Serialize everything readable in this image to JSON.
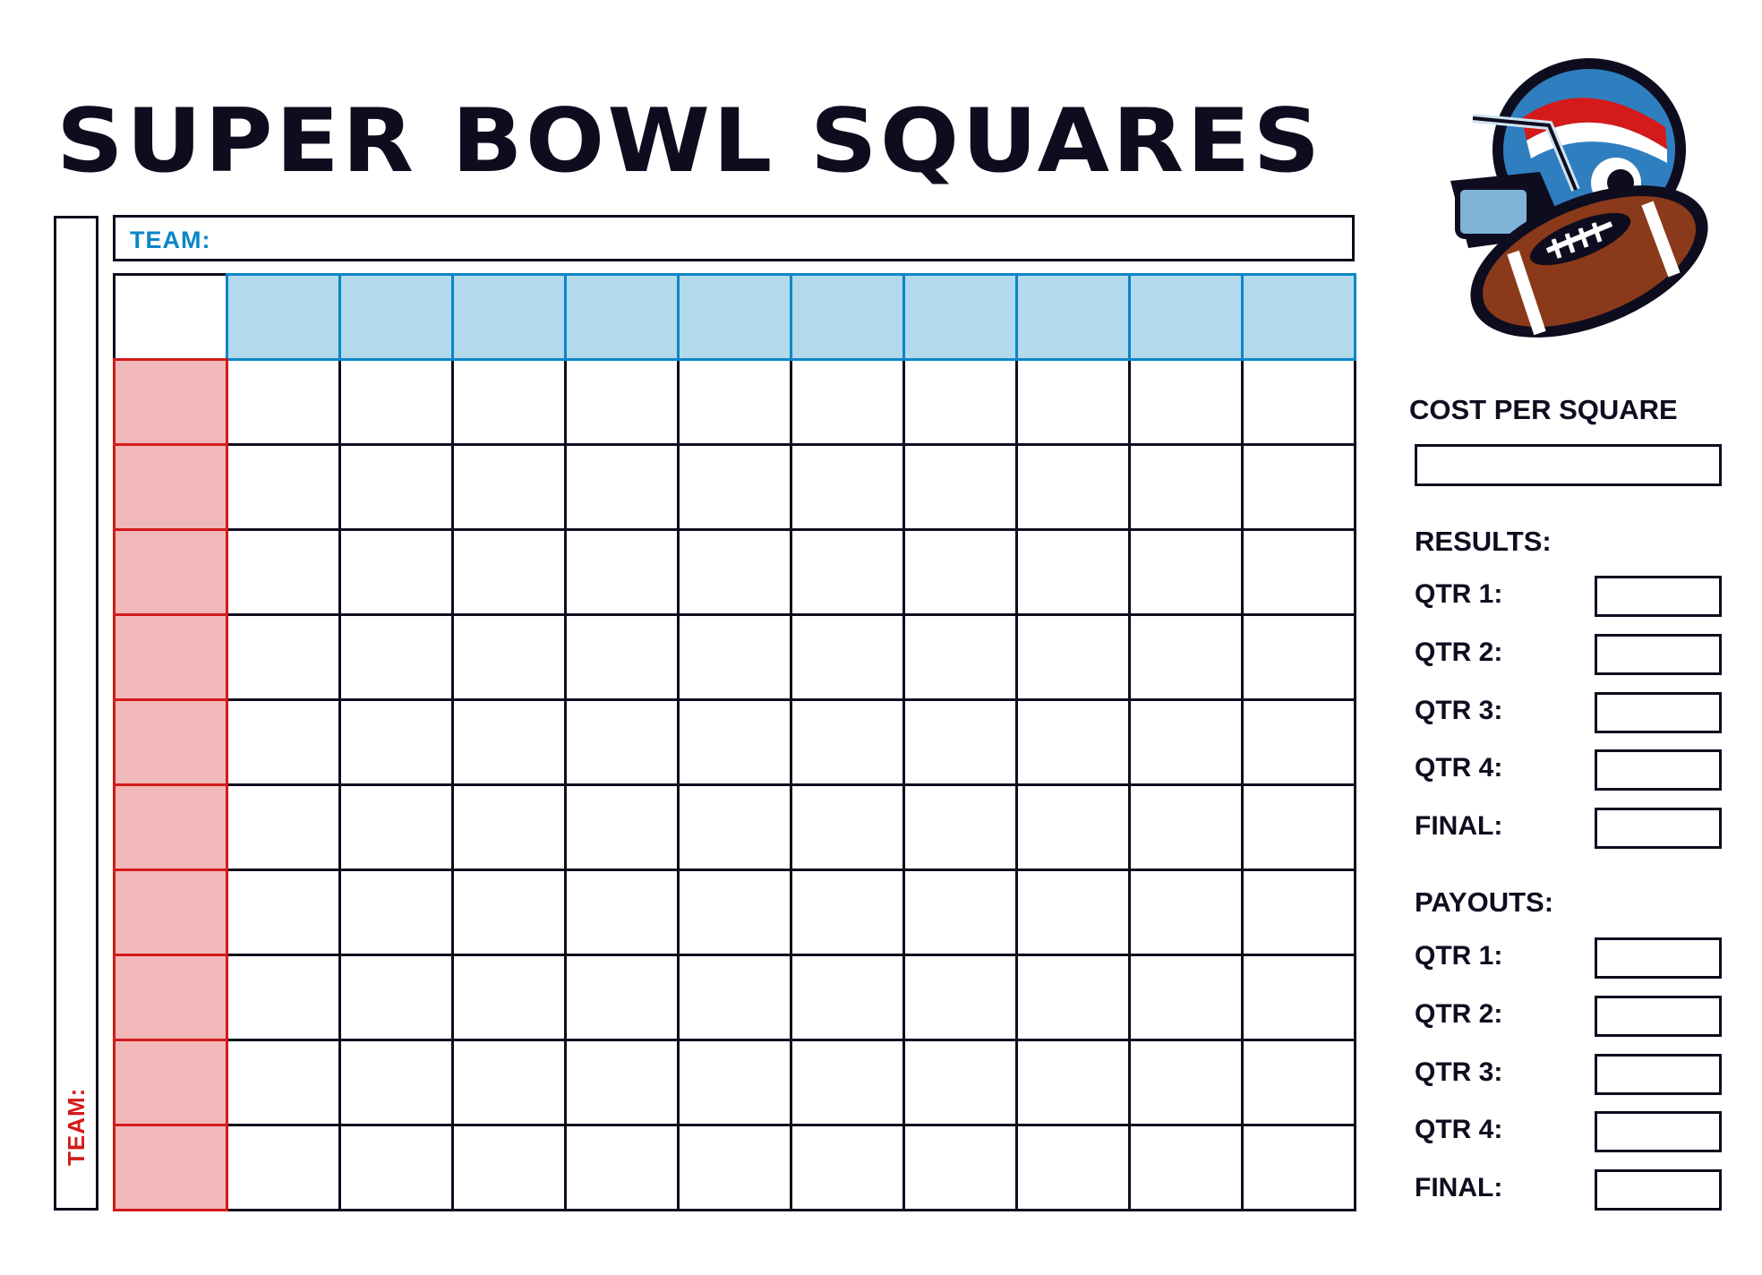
{
  "title": "SUPER BOWL SQUARES",
  "top_team_label": "TEAM:",
  "side_team_label": "TEAM:",
  "grid": {
    "rows": 10,
    "columns": 10
  },
  "colors": {
    "ink": "#0e0d1f",
    "blue": "#0a86c8",
    "light_blue": "#b3d9ec",
    "red": "#d41a1a",
    "pink": "#f0b8b8"
  },
  "logo": {
    "icon": "football-helmet-icon"
  },
  "cost": {
    "label": "COST PER SQUARE",
    "value": ""
  },
  "results": {
    "heading": "RESULTS:",
    "items": [
      {
        "label": "QTR 1:",
        "value": ""
      },
      {
        "label": "QTR 2:",
        "value": ""
      },
      {
        "label": "QTR 3:",
        "value": ""
      },
      {
        "label": "QTR 4:",
        "value": ""
      },
      {
        "label": "FINAL:",
        "value": ""
      }
    ]
  },
  "payouts": {
    "heading": "PAYOUTS:",
    "items": [
      {
        "label": "QTR 1:",
        "value": ""
      },
      {
        "label": "QTR 2:",
        "value": ""
      },
      {
        "label": "QTR 3:",
        "value": ""
      },
      {
        "label": "QTR 4:",
        "value": ""
      },
      {
        "label": "FINAL:",
        "value": ""
      }
    ]
  }
}
